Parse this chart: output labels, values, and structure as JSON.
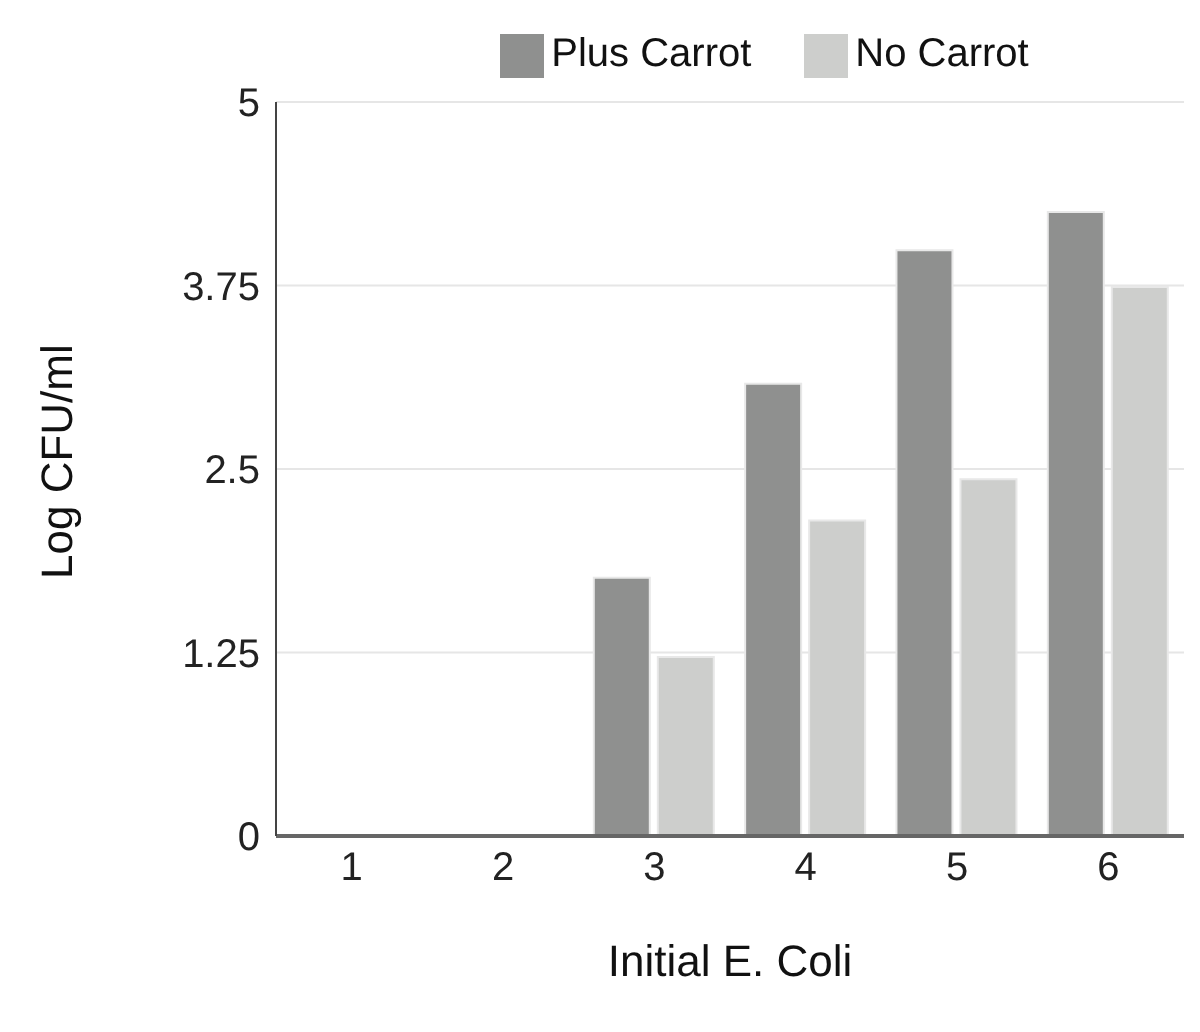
{
  "chart_data": {
    "type": "bar",
    "xlabel": "Initial E. Coli",
    "ylabel": "Log CFU/ml",
    "categories": [
      "1",
      "2",
      "3",
      "4",
      "5",
      "6"
    ],
    "series": [
      {
        "name": "Plus Carrot",
        "color": "#8f908f",
        "values": [
          0,
          0,
          1.76,
          3.08,
          3.99,
          4.25
        ]
      },
      {
        "name": "No Carrot",
        "color": "#cdcecc",
        "values": [
          0,
          0,
          1.22,
          2.15,
          2.43,
          3.74
        ]
      }
    ],
    "ylim": [
      0,
      5
    ],
    "yticks": [
      0,
      1.25,
      2.5,
      3.75,
      5
    ],
    "grid": "y",
    "legend": "top"
  }
}
